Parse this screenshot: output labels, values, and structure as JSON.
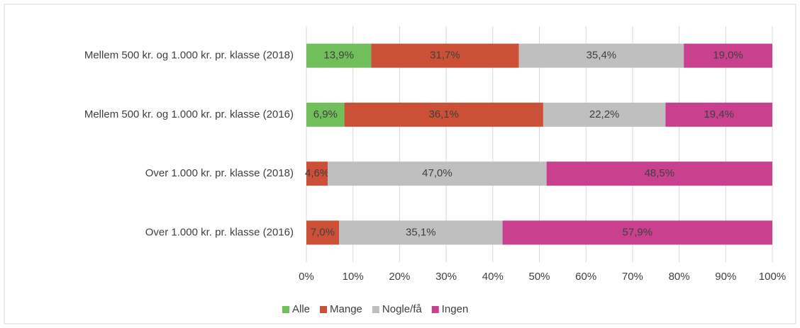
{
  "chart_data": {
    "type": "stacked-bar-horizontal",
    "stacking": "percent",
    "categories": [
      "Mellem 500 kr. og 1.000 kr. pr. klasse (2018)",
      "Mellem 500 kr. og 1.000 kr. pr. klasse (2016)",
      "Over 1.000 kr. pr. klasse (2018)",
      "Over 1.000 kr. pr. klasse (2016)"
    ],
    "series": [
      {
        "name": "Alle",
        "color": "#70bf5b",
        "values": [
          13.9,
          6.9,
          0,
          0
        ],
        "value_labels": [
          "13,9%",
          "6,9%",
          null,
          null
        ]
      },
      {
        "name": "Mange",
        "color": "#cc5035",
        "values": [
          31.7,
          36.1,
          4.6,
          7.0
        ],
        "value_labels": [
          "31,7%",
          "36,1%",
          "4,6%",
          "7,0%"
        ]
      },
      {
        "name": "Nogle/få",
        "color": "#bfbfbf",
        "values": [
          35.4,
          22.2,
          47.0,
          35.1
        ],
        "value_labels": [
          "35,4%",
          "22,2%",
          "47,0%",
          "35,1%"
        ]
      },
      {
        "name": "Ingen",
        "color": "#c8408e",
        "values": [
          19.0,
          19.4,
          48.5,
          57.9
        ],
        "value_labels": [
          "19,0%",
          "19,4%",
          "48,5%",
          "57,9%"
        ]
      }
    ],
    "xlim": [
      0,
      100
    ],
    "xticks": [
      {
        "value": 0,
        "label": "0%"
      },
      {
        "value": 10,
        "label": "10%"
      },
      {
        "value": 20,
        "label": "20%"
      },
      {
        "value": 30,
        "label": "30%"
      },
      {
        "value": 40,
        "label": "40%"
      },
      {
        "value": 50,
        "label": "50%"
      },
      {
        "value": 60,
        "label": "60%"
      },
      {
        "value": 70,
        "label": "70%"
      },
      {
        "value": 80,
        "label": "80%"
      },
      {
        "value": 90,
        "label": "90%"
      },
      {
        "value": 100,
        "label": "100%"
      }
    ],
    "grid": true,
    "legend": "bottom"
  }
}
